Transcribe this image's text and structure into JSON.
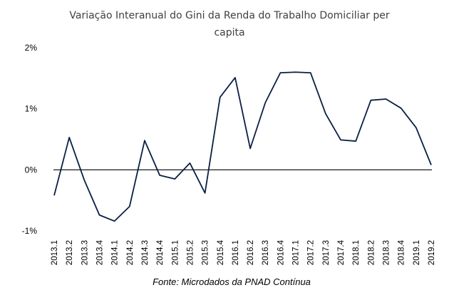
{
  "chart_data": {
    "type": "line",
    "title_lines": [
      "Variação Interanual do Gini da Renda do Trabalho Domiciliar per",
      "capita"
    ],
    "source": "Fonte: Microdados da PNAD Contínua",
    "y_ticks": [
      "2%",
      "1%",
      "0%",
      "-1%"
    ],
    "y_tick_values": [
      2,
      1,
      0,
      -1
    ],
    "ylim": [
      -1,
      2
    ],
    "grid": false,
    "baseline_value": 0,
    "line_color": "#0a1f44",
    "baseline_color": "#000000",
    "categories": [
      "2013.1",
      "2013.2",
      "2013.3",
      "2013.4",
      "2014.1",
      "2014.2",
      "2014.3",
      "2014.4",
      "2015.1",
      "2015.2",
      "2015.3",
      "2015.4",
      "2016.1",
      "2016.2",
      "2016.3",
      "2016.4",
      "2017.1",
      "2017.2",
      "2017.3",
      "2017.4",
      "2018.1",
      "2018.2",
      "2018.3",
      "2018.4",
      "2019.1",
      "2019.2"
    ],
    "values": [
      -0.42,
      0.53,
      -0.17,
      -0.74,
      -0.84,
      -0.6,
      0.48,
      -0.09,
      -0.15,
      0.11,
      -0.38,
      1.19,
      1.51,
      0.35,
      1.1,
      1.59,
      1.6,
      1.59,
      0.92,
      0.49,
      0.47,
      1.14,
      1.16,
      1.01,
      0.69,
      0.08
    ]
  }
}
